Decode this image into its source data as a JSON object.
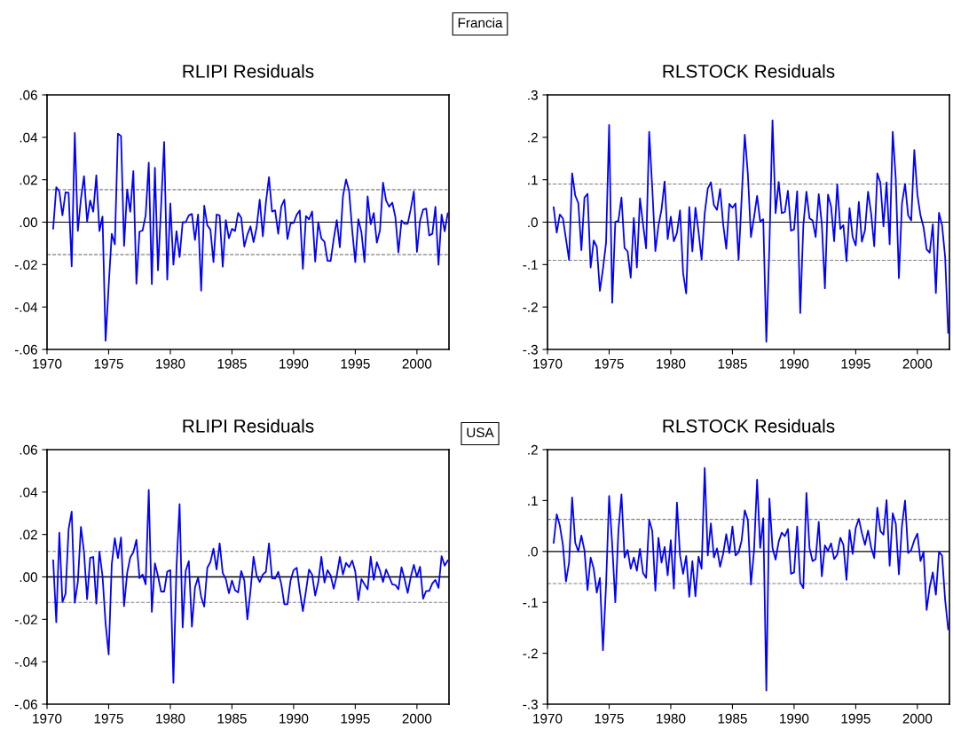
{
  "chart_data": [
    {
      "type": "line",
      "title": "RLIPI Residuals",
      "annotations": [
        "Francia"
      ],
      "x": [
        1970.5,
        1970.75,
        1971,
        1971.25,
        1971.5,
        1971.75,
        1972,
        1972.25,
        1972.5,
        1972.75,
        1973,
        1973.25,
        1973.5,
        1973.75,
        1974,
        1974.25,
        1974.5,
        1974.75,
        1975,
        1975.25,
        1975.5,
        1975.75,
        1976,
        1976.25,
        1976.5,
        1976.75,
        1977,
        1977.25,
        1977.5,
        1977.75,
        1978,
        1978.25,
        1978.5,
        1978.75,
        1979,
        1979.25,
        1979.5,
        1979.75,
        1980,
        1980.25,
        1980.5,
        1980.75,
        1981,
        1981.25,
        1981.5,
        1981.75,
        1982,
        1982.25,
        1982.5,
        1982.75,
        1983,
        1983.25,
        1983.5,
        1983.75,
        1984,
        1984.25,
        1984.5,
        1984.75,
        1985,
        1985.25,
        1985.5,
        1985.75,
        1986,
        1986.25,
        1986.5,
        1986.75,
        1987,
        1987.25,
        1987.5,
        1987.75,
        1988,
        1988.25,
        1988.5,
        1988.75,
        1989,
        1989.25,
        1989.5,
        1989.75,
        1990,
        1990.25,
        1990.5,
        1990.75,
        1991,
        1991.25,
        1991.5,
        1991.75,
        1992,
        1992.25,
        1992.5,
        1992.75,
        1993,
        1993.25,
        1993.5,
        1993.75,
        1994,
        1994.25,
        1994.5,
        1994.75,
        1995,
        1995.25,
        1995.5,
        1995.75,
        1996,
        1996.25,
        1996.5,
        1996.75,
        1997,
        1997.25,
        1997.5,
        1997.75,
        1998,
        1998.25,
        1998.5,
        1998.75,
        1999,
        1999.25,
        1999.5,
        1999.75,
        2000,
        2000.25,
        2000.5,
        2000.75,
        2001,
        2001.25,
        2001.5,
        2001.75,
        2002,
        2002.25,
        2002.5
      ],
      "series": [
        {
          "color": "#0000ff",
          "values": [
            -0.003,
            0.0165,
            0.0144,
            0.0032,
            0.0141,
            0.0138,
            -0.0208,
            0.0421,
            -0.0041,
            0.0109,
            0.0217,
            0.0004,
            0.0102,
            0.0049,
            0.0221,
            -0.0042,
            0.0027,
            -0.0559,
            -0.03,
            -0.0055,
            -0.0105,
            0.0417,
            0.0406,
            -0.0112,
            0.0154,
            0.0049,
            0.0241,
            -0.029,
            -0.0045,
            -0.0039,
            0.0032,
            0.0281,
            -0.0292,
            0.0256,
            -0.0227,
            0.0074,
            0.0378,
            -0.0271,
            0.0088,
            -0.02,
            -0.0042,
            -0.0165,
            0,
            0,
            0.0032,
            0.0039,
            -0.0084,
            0.0036,
            -0.0323,
            0.0078,
            -0.0015,
            -0.0035,
            -0.0189,
            0.0036,
            0.0032,
            -0.021,
            0.001,
            -0.0076,
            -0.0031,
            -0.0042,
            0.0043,
            0.0021,
            -0.0115,
            -0.0059,
            -0.002,
            -0.0094,
            -0.0024,
            0.0106,
            -0.0067,
            0.0091,
            0.0213,
            0.005,
            0.0056,
            -0.0055,
            0.0074,
            0.0106,
            -0.008,
            -0.0006,
            -0.0004,
            0.0035,
            0.0055,
            -0.022,
            0.0029,
            0.0013,
            0.005,
            -0.0186,
            0,
            -0.0077,
            -0.0092,
            -0.0182,
            -0.0183,
            -0.008,
            0.001,
            -0.0119,
            0.0122,
            0.0201,
            0.0147,
            -0.0038,
            -0.0189,
            0.0014,
            -0.0048,
            -0.0189,
            0.0122,
            -0.001,
            0.0043,
            -0.0097,
            -0.0039,
            0.0186,
            0.0102,
            0.0073,
            0.0092,
            0.0025,
            -0.0143,
            0.0008,
            -0.0008,
            -0.0008,
            0.0062,
            0.0145,
            -0.014,
            0.0006,
            0.0059,
            0.0064,
            -0.0063,
            -0.0055,
            0.0073,
            -0.0201,
            0.0036,
            -0.0043,
            0.0042
          ]
        }
      ],
      "xlim": [
        1970,
        2002.6
      ],
      "xticks": [
        1970,
        1975,
        1980,
        1985,
        1990,
        1995,
        2000
      ],
      "ylim": [
        -0.06,
        0.06
      ],
      "yticks": [
        {
          "value": -0.06,
          "label": "-.06"
        },
        {
          "value": -0.04,
          "label": "-.04"
        },
        {
          "value": -0.02,
          "label": "-.02"
        },
        {
          "value": 0,
          "label": ".00"
        },
        {
          "value": 0.02,
          "label": ".02"
        },
        {
          "value": 0.04,
          "label": ".04"
        },
        {
          "value": 0.06,
          "label": ".06"
        }
      ],
      "ref_lines": [
        {
          "axis": "y",
          "value": 0,
          "color": "#000000",
          "line_style": "solid"
        },
        {
          "axis": "y",
          "value": 0.0153,
          "color": "#808080",
          "line_style": "dashed"
        },
        {
          "axis": "y",
          "value": -0.0153,
          "color": "#808080",
          "line_style": "dashed"
        }
      ],
      "line_style": "solid"
    },
    {
      "type": "line",
      "title": "RLSTOCK Residuals",
      "x": [
        1970.5,
        1970.75,
        1971,
        1971.25,
        1971.5,
        1971.75,
        1972,
        1972.25,
        1972.5,
        1972.75,
        1973,
        1973.25,
        1973.5,
        1973.75,
        1974,
        1974.25,
        1974.5,
        1974.75,
        1975,
        1975.25,
        1975.5,
        1975.75,
        1976,
        1976.25,
        1976.5,
        1976.75,
        1977,
        1977.25,
        1977.5,
        1977.75,
        1978,
        1978.25,
        1978.5,
        1978.75,
        1979,
        1979.25,
        1979.5,
        1979.75,
        1980,
        1980.25,
        1980.5,
        1980.75,
        1981,
        1981.25,
        1981.5,
        1981.75,
        1982,
        1982.25,
        1982.5,
        1982.75,
        1983,
        1983.25,
        1983.5,
        1983.75,
        1984,
        1984.25,
        1984.5,
        1984.75,
        1985,
        1985.25,
        1985.5,
        1985.75,
        1986,
        1986.25,
        1986.5,
        1986.75,
        1987,
        1987.25,
        1987.5,
        1987.75,
        1988,
        1988.25,
        1988.5,
        1988.75,
        1989,
        1989.25,
        1989.5,
        1989.75,
        1990,
        1990.25,
        1990.5,
        1990.75,
        1991,
        1991.25,
        1991.5,
        1991.75,
        1992,
        1992.25,
        1992.5,
        1992.75,
        1993,
        1993.25,
        1993.5,
        1993.75,
        1994,
        1994.25,
        1994.5,
        1994.75,
        1995,
        1995.25,
        1995.5,
        1995.75,
        1996,
        1996.25,
        1996.5,
        1996.75,
        1997,
        1997.25,
        1997.5,
        1997.75,
        1998,
        1998.25,
        1998.5,
        1998.75,
        1999,
        1999.25,
        1999.5,
        1999.75,
        2000,
        2000.25,
        2000.5,
        2000.75,
        2001,
        2001.25,
        2001.5,
        2001.75,
        2002,
        2002.25,
        2002.5
      ],
      "series": [
        {
          "color": "#0000ff",
          "values": [
            0.035,
            -0.025,
            0.018,
            0.009,
            -0.04,
            -0.089,
            0.115,
            0.063,
            0.045,
            -0.066,
            0.058,
            0.067,
            -0.107,
            -0.043,
            -0.058,
            -0.162,
            -0.11,
            -0.049,
            0.229,
            -0.19,
            0.001,
            0.003,
            0.058,
            -0.061,
            -0.069,
            -0.131,
            0.01,
            -0.107,
            0.056,
            -0.005,
            -0.062,
            0.213,
            0.079,
            -0.068,
            -0.008,
            0.03,
            0.096,
            -0.04,
            0.013,
            -0.045,
            -0.026,
            0.028,
            -0.12,
            -0.168,
            0.036,
            -0.069,
            0.034,
            -0.022,
            -0.088,
            0.02,
            0.079,
            0.094,
            0.04,
            0.029,
            0.078,
            -0.005,
            -0.063,
            0.043,
            0.034,
            0.044,
            -0.089,
            0.058,
            0.206,
            0.114,
            -0.035,
            0.011,
            0.062,
            0.002,
            0.007,
            -0.282,
            -0.054,
            0.24,
            0.021,
            0.095,
            0.021,
            0.024,
            0.074,
            -0.02,
            -0.017,
            0.073,
            -0.214,
            -0.008,
            0.072,
            0.009,
            0.004,
            -0.035,
            0.066,
            -0.005,
            -0.156,
            0.065,
            0.037,
            -0.045,
            0.089,
            -0.016,
            -0.007,
            -0.092,
            0.033,
            -0.035,
            -0.055,
            0.048,
            -0.046,
            -0.019,
            0.072,
            0.02,
            -0.057,
            0.115,
            0.093,
            -0.01,
            0.094,
            -0.052,
            0.213,
            0.1,
            -0.132,
            0.044,
            0.09,
            0.016,
            0.004,
            0.17,
            0.065,
            0.016,
            -0.012,
            -0.064,
            -0.072,
            -0.005,
            -0.167,
            0.022,
            -0.007,
            -0.082,
            -0.261
          ]
        }
      ],
      "xlim": [
        1970,
        2002.6
      ],
      "xticks": [
        1970,
        1975,
        1980,
        1985,
        1990,
        1995,
        2000
      ],
      "ylim": [
        -0.3,
        0.3
      ],
      "yticks": [
        {
          "value": -0.3,
          "label": "-.3"
        },
        {
          "value": -0.2,
          "label": "-.2"
        },
        {
          "value": -0.1,
          "label": "-.1"
        },
        {
          "value": 0,
          "label": ".0"
        },
        {
          "value": 0.1,
          "label": ".1"
        },
        {
          "value": 0.2,
          "label": ".2"
        },
        {
          "value": 0.3,
          "label": ".3"
        }
      ],
      "ref_lines": [
        {
          "axis": "y",
          "value": 0,
          "color": "#000000",
          "line_style": "solid"
        },
        {
          "axis": "y",
          "value": 0.09,
          "color": "#808080",
          "line_style": "dashed"
        },
        {
          "axis": "y",
          "value": -0.09,
          "color": "#808080",
          "line_style": "dashed"
        }
      ],
      "line_style": "solid"
    },
    {
      "type": "line",
      "title": "RLIPI Residuals",
      "annotations": [
        "USA"
      ],
      "x": [
        1970.5,
        1970.75,
        1971,
        1971.25,
        1971.5,
        1971.75,
        1972,
        1972.25,
        1972.5,
        1972.75,
        1973,
        1973.25,
        1973.5,
        1973.75,
        1974,
        1974.25,
        1974.5,
        1974.75,
        1975,
        1975.25,
        1975.5,
        1975.75,
        1976,
        1976.25,
        1976.5,
        1976.75,
        1977,
        1977.25,
        1977.5,
        1977.75,
        1978,
        1978.25,
        1978.5,
        1978.75,
        1979,
        1979.25,
        1979.5,
        1979.75,
        1980,
        1980.25,
        1980.5,
        1980.75,
        1981,
        1981.25,
        1981.5,
        1981.75,
        1982,
        1982.25,
        1982.5,
        1982.75,
        1983,
        1983.25,
        1983.5,
        1983.75,
        1984,
        1984.25,
        1984.5,
        1984.75,
        1985,
        1985.25,
        1985.5,
        1985.75,
        1986,
        1986.25,
        1986.5,
        1986.75,
        1987,
        1987.25,
        1987.5,
        1987.75,
        1988,
        1988.25,
        1988.5,
        1988.75,
        1989,
        1989.25,
        1989.5,
        1989.75,
        1990,
        1990.25,
        1990.5,
        1990.75,
        1991,
        1991.25,
        1991.5,
        1991.75,
        1992,
        1992.25,
        1992.5,
        1992.75,
        1993,
        1993.25,
        1993.5,
        1993.75,
        1994,
        1994.25,
        1994.5,
        1994.75,
        1995,
        1995.25,
        1995.5,
        1995.75,
        1996,
        1996.25,
        1996.5,
        1996.75,
        1997,
        1997.25,
        1997.5,
        1997.75,
        1998,
        1998.25,
        1998.5,
        1998.75,
        1999,
        1999.25,
        1999.5,
        1999.75,
        2000,
        2000.25,
        2000.5,
        2000.75,
        2001,
        2001.25,
        2001.5,
        2001.75,
        2002,
        2002.25,
        2002.5
      ],
      "series": [
        {
          "color": "#0000ff",
          "values": [
            0.0078,
            -0.0214,
            0.0208,
            -0.0119,
            -0.008,
            0.0225,
            0.0308,
            -0.0122,
            -0.0024,
            0.0236,
            0.0116,
            -0.0105,
            0.009,
            0.0094,
            -0.0126,
            0.012,
            0.0004,
            -0.022,
            -0.0366,
            0.006,
            0.0182,
            0.0088,
            0.0186,
            -0.0138,
            0.0018,
            0.0092,
            0.0116,
            0.0175,
            -0.0006,
            0.0011,
            -0.0035,
            0.041,
            -0.0165,
            0.0064,
            0.0004,
            -0.0069,
            -0.0069,
            0.0025,
            0.0032,
            -0.0499,
            0.0046,
            0.0343,
            -0.0238,
            0.0029,
            0.0074,
            -0.0235,
            -0.0049,
            -0.0003,
            -0.0094,
            -0.014,
            0.0043,
            0.007,
            0.0133,
            0.0035,
            0.0158,
            0.0018,
            -0.001,
            -0.0077,
            -0.0017,
            -0.0063,
            -0.0073,
            0.0028,
            -0.0017,
            -0.02,
            -0.0066,
            0.0095,
            0.0007,
            -0.0024,
            0.0011,
            0.0024,
            0.0158,
            -0.0007,
            -0.0008,
            0.0024,
            -0.0034,
            -0.0129,
            -0.0129,
            -0.0017,
            0.0032,
            0.0043,
            -0.0066,
            -0.0161,
            -0.0066,
            0.0035,
            0.0011,
            -0.0088,
            -0.0024,
            0.0095,
            -0.0027,
            0.0032,
            0.0007,
            -0.0056,
            0.0007,
            0.0094,
            0.0011,
            0.0066,
            0.0046,
            0.0077,
            0.0025,
            -0.011,
            -0.001,
            -0.0035,
            -0.0059,
            0.0095,
            -0.0014,
            0.0069,
            0.0029,
            -0.0024,
            0.0035,
            0,
            -0.0035,
            -0.0038,
            -0.0059,
            0.0045,
            -0.001,
            -0.0076,
            0,
            0.0057,
            0,
            0.0048,
            -0.0103,
            -0.0066,
            -0.0066,
            -0.0031,
            -0.0014,
            -0.0052,
            0.0098,
            0.0053,
            0.0077
          ]
        }
      ],
      "xlim": [
        1970,
        2002.6
      ],
      "xticks": [
        1970,
        1975,
        1980,
        1985,
        1990,
        1995,
        2000
      ],
      "ylim": [
        -0.06,
        0.06
      ],
      "yticks": [
        {
          "value": -0.06,
          "label": "-.06"
        },
        {
          "value": -0.04,
          "label": "-.04"
        },
        {
          "value": -0.02,
          "label": "-.02"
        },
        {
          "value": 0,
          "label": ".00"
        },
        {
          "value": 0.02,
          "label": ".02"
        },
        {
          "value": 0.04,
          "label": ".04"
        },
        {
          "value": 0.06,
          "label": ".06"
        }
      ],
      "ref_lines": [
        {
          "axis": "y",
          "value": 0,
          "color": "#000000",
          "line_style": "solid"
        },
        {
          "axis": "y",
          "value": 0.012,
          "color": "#808080",
          "line_style": "dashed"
        },
        {
          "axis": "y",
          "value": -0.012,
          "color": "#808080",
          "line_style": "dashed"
        }
      ],
      "line_style": "solid"
    },
    {
      "type": "line",
      "title": "RLSTOCK Residuals",
      "x": [
        1970.5,
        1970.75,
        1971,
        1971.25,
        1971.5,
        1971.75,
        1972,
        1972.25,
        1972.5,
        1972.75,
        1973,
        1973.25,
        1973.5,
        1973.75,
        1974,
        1974.25,
        1974.5,
        1974.75,
        1975,
        1975.25,
        1975.5,
        1975.75,
        1976,
        1976.25,
        1976.5,
        1976.75,
        1977,
        1977.25,
        1977.5,
        1977.75,
        1978,
        1978.25,
        1978.5,
        1978.75,
        1979,
        1979.25,
        1979.5,
        1979.75,
        1980,
        1980.25,
        1980.5,
        1980.75,
        1981,
        1981.25,
        1981.5,
        1981.75,
        1982,
        1982.25,
        1982.5,
        1982.75,
        1983,
        1983.25,
        1983.5,
        1983.75,
        1984,
        1984.25,
        1984.5,
        1984.75,
        1985,
        1985.25,
        1985.5,
        1985.75,
        1986,
        1986.25,
        1986.5,
        1986.75,
        1987,
        1987.25,
        1987.5,
        1987.75,
        1988,
        1988.25,
        1988.5,
        1988.75,
        1989,
        1989.25,
        1989.5,
        1989.75,
        1990,
        1990.25,
        1990.5,
        1990.75,
        1991,
        1991.25,
        1991.5,
        1991.75,
        1992,
        1992.25,
        1992.5,
        1992.75,
        1993,
        1993.25,
        1993.5,
        1993.75,
        1994,
        1994.25,
        1994.5,
        1994.75,
        1995,
        1995.25,
        1995.5,
        1995.75,
        1996,
        1996.25,
        1996.5,
        1996.75,
        1997,
        1997.25,
        1997.5,
        1997.75,
        1998,
        1998.25,
        1998.5,
        1998.75,
        1999,
        1999.25,
        1999.5,
        1999.75,
        2000,
        2000.25,
        2000.5,
        2000.75,
        2001,
        2001.25,
        2001.5,
        2001.75,
        2002,
        2002.25,
        2002.5
      ],
      "series": [
        {
          "color": "#0000ff",
          "values": [
            0.017,
            0.073,
            0.051,
            0.013,
            -0.059,
            -0.022,
            0.106,
            0.017,
            0,
            0.031,
            0.002,
            -0.076,
            -0.012,
            -0.034,
            -0.081,
            -0.052,
            -0.194,
            -0.066,
            0.109,
            0.013,
            -0.1,
            0.039,
            0.112,
            -0.012,
            0.003,
            -0.034,
            -0.012,
            -0.038,
            0.005,
            -0.042,
            -0.052,
            0.062,
            0.04,
            -0.077,
            0.027,
            -0.022,
            0.009,
            -0.047,
            0.022,
            -0.073,
            0.096,
            -0.008,
            -0.044,
            -0.009,
            -0.089,
            -0.019,
            -0.088,
            -0.01,
            -0.034,
            0.164,
            -0.008,
            0.055,
            -0.012,
            0.006,
            -0.03,
            -0.004,
            0.034,
            -0.003,
            0.049,
            -0.008,
            -0.002,
            0.022,
            0.081,
            0.062,
            -0.065,
            0.001,
            0.141,
            0.007,
            0.065,
            -0.273,
            0.104,
            0.007,
            -0.016,
            0.019,
            0.037,
            0.03,
            0.044,
            -0.044,
            -0.041,
            0.049,
            -0.061,
            -0.072,
            0.115,
            0.007,
            -0.019,
            -0.015,
            0.058,
            -0.049,
            0.012,
            0.001,
            0.016,
            -0.015,
            -0.006,
            0.027,
            0.013,
            -0.056,
            0.042,
            -0.005,
            0.046,
            0.064,
            0.036,
            0.013,
            0.041,
            0.008,
            -0.013,
            0.086,
            0.04,
            0.033,
            0.101,
            -0.028,
            0.075,
            0.054,
            -0.045,
            0.051,
            0.1,
            -0.003,
            0.003,
            0.022,
            0.035,
            -0.019,
            -0.001,
            -0.115,
            -0.07,
            -0.041,
            -0.085,
            -0.001,
            -0.008,
            -0.095,
            -0.153
          ]
        }
      ],
      "xlim": [
        1970,
        2002.6
      ],
      "xticks": [
        1970,
        1975,
        1980,
        1985,
        1990,
        1995,
        2000
      ],
      "ylim": [
        -0.3,
        0.2
      ],
      "yticks": [
        {
          "value": -0.3,
          "label": "-.3"
        },
        {
          "value": -0.2,
          "label": "-.2"
        },
        {
          "value": -0.1,
          "label": "-.1"
        },
        {
          "value": 0,
          "label": ".0"
        },
        {
          "value": 0.1,
          "label": ".1"
        },
        {
          "value": 0.2,
          "label": ".2"
        }
      ],
      "ref_lines": [
        {
          "axis": "y",
          "value": 0,
          "color": "#000000",
          "line_style": "solid"
        },
        {
          "axis": "y",
          "value": 0.063,
          "color": "#808080",
          "line_style": "dashed"
        },
        {
          "axis": "y",
          "value": -0.063,
          "color": "#808080",
          "line_style": "dashed"
        }
      ],
      "line_style": "solid"
    }
  ]
}
